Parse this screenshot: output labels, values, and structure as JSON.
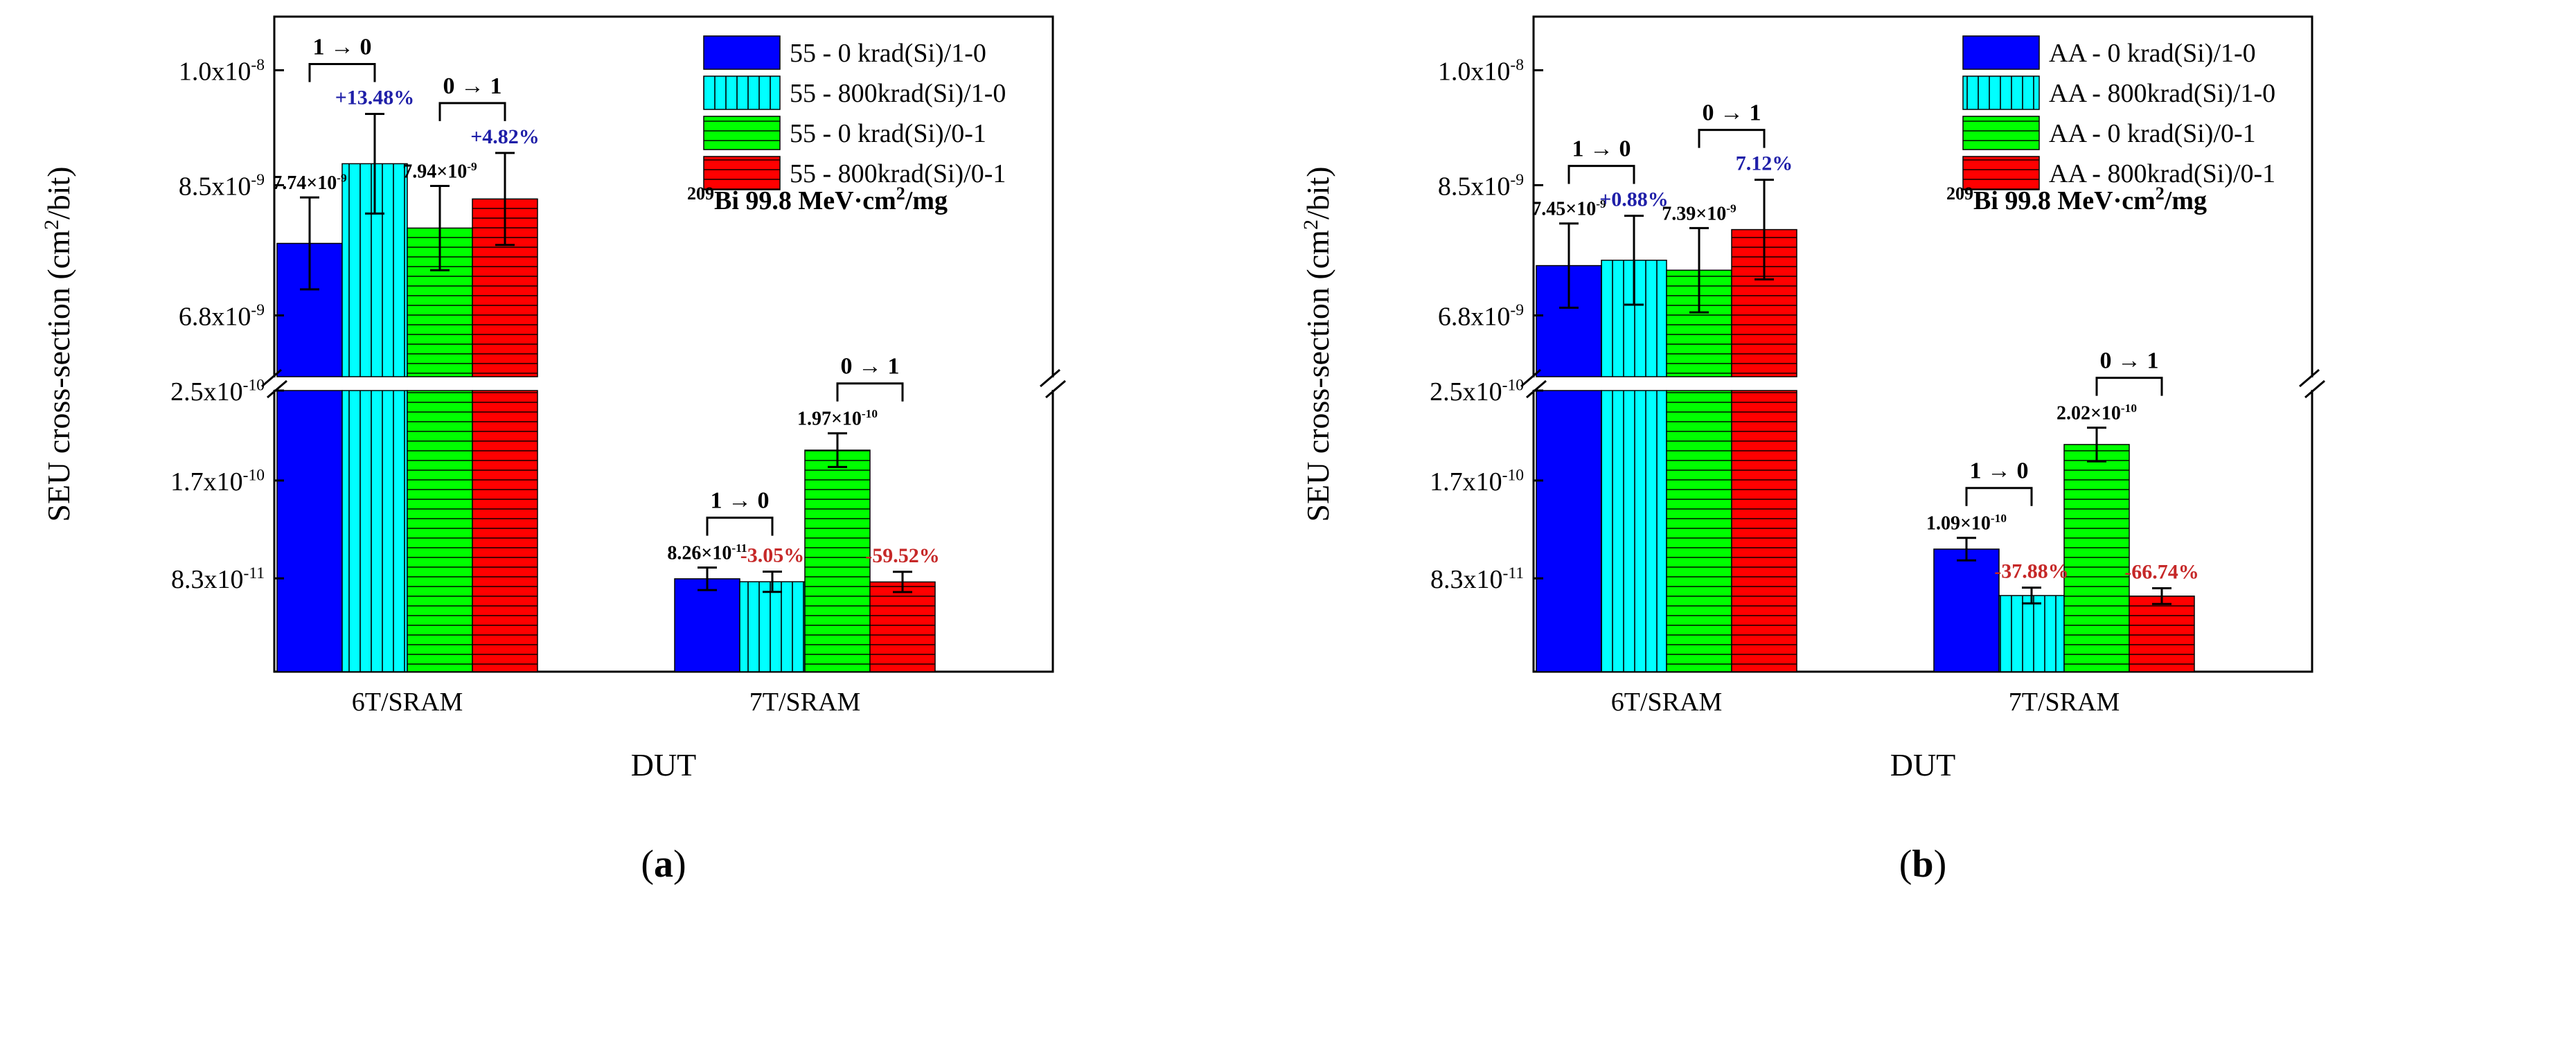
{
  "figure": {
    "subcaptions": [
      "(a)",
      "(b)"
    ]
  },
  "chart_data": [
    {
      "type": "bar",
      "panel_label": "(a)",
      "xlabel": "DUT",
      "ylabel": "SEU cross-section (cm²/bit)",
      "ylabel_parts": {
        "prefix": "SEU cross-section (cm",
        "sup": "2",
        "suffix": "/bit)"
      },
      "axis_break": true,
      "upper_axis": {
        "ylim": [
          6e-09,
          1.07e-08
        ],
        "ticks": [
          {
            "value": 6.8e-09,
            "base": "6.8x10",
            "exp": "-9"
          },
          {
            "value": 8.5e-09,
            "base": "8.5x10",
            "exp": "-9"
          },
          {
            "value": 1e-08,
            "base": "1.0x10",
            "exp": "-8"
          }
        ]
      },
      "lower_axis": {
        "ylim": [
          0,
          2.5e-10
        ],
        "ticks": [
          {
            "value": 8.3e-11,
            "base": "8.3x10",
            "exp": "-11"
          },
          {
            "value": 1.7e-10,
            "base": "1.7x10",
            "exp": "-10"
          },
          {
            "value": 2.5e-10,
            "base": "2.5x10",
            "exp": "-10"
          }
        ]
      },
      "categories": [
        "6T/SRAM",
        "7T/SRAM"
      ],
      "series": [
        {
          "name": "55 -  0  krad(Si)/1-0",
          "color": "#0000ff",
          "pattern": "solid",
          "values": [
            7.74e-09,
            8.26e-11
          ],
          "errors": [
            6e-10,
            1e-11
          ]
        },
        {
          "name": "55 - 800krad(Si)/1-0",
          "color": "#00ffff",
          "pattern": "vertical",
          "values": [
            8.78e-09,
            8e-11
          ],
          "errors": [
            6.5e-10,
            9e-12
          ]
        },
        {
          "name": "55 -  0  krad(Si)/0-1",
          "color": "#00ff00",
          "pattern": "horizontal",
          "values": [
            7.94e-09,
            1.97e-10
          ],
          "errors": [
            5.5e-10,
            1.5e-11
          ]
        },
        {
          "name": "55 - 800krad(Si)/0-1",
          "color": "#ff0000",
          "pattern": "horizontal",
          "values": [
            8.32e-09,
            7.98e-11
          ],
          "errors": [
            6e-10,
            9e-12
          ]
        }
      ],
      "annotations": {
        "value_labels": [
          {
            "category": 0,
            "series": 0,
            "base": "7.74×10",
            "exp": "-9"
          },
          {
            "category": 0,
            "series": 2,
            "base": "7.94×10",
            "exp": "-9"
          },
          {
            "category": 1,
            "series": 0,
            "base": "8.26×10",
            "exp": "-11"
          },
          {
            "category": 1,
            "series": 2,
            "base": "1.97×10",
            "exp": "-10"
          }
        ],
        "percent_labels": [
          {
            "category": 0,
            "series": 1,
            "text": "+13.48%",
            "color": "#1f1fa8"
          },
          {
            "category": 0,
            "series": 3,
            "text": "+4.82%",
            "color": "#1f1fa8"
          },
          {
            "category": 1,
            "series": 1,
            "text": "-3.05%",
            "color": "#c62828"
          },
          {
            "category": 1,
            "series": 3,
            "text": "-59.52%",
            "color": "#c62828"
          }
        ],
        "brackets": [
          {
            "category": 0,
            "pair": [
              0,
              1
            ],
            "text": "1 → 0"
          },
          {
            "category": 0,
            "pair": [
              2,
              3
            ],
            "text": "0 → 1"
          },
          {
            "category": 1,
            "pair": [
              0,
              1
            ],
            "text": "1 → 0"
          },
          {
            "category": 1,
            "pair": [
              2,
              3
            ],
            "text": "0 → 1"
          }
        ]
      },
      "ion_note": {
        "sup": "209",
        "text": "Bi  99.8 MeV·cm",
        "sup2": "2",
        "tail": "/mg"
      },
      "legend_position": "top-right"
    },
    {
      "type": "bar",
      "panel_label": "(b)",
      "xlabel": "DUT",
      "ylabel": "SEU cross-section (cm²/bit)",
      "ylabel_parts": {
        "prefix": "SEU cross-section (cm",
        "sup": "2",
        "suffix": "/bit)"
      },
      "axis_break": true,
      "upper_axis": {
        "ylim": [
          6e-09,
          1.07e-08
        ],
        "ticks": [
          {
            "value": 6.8e-09,
            "base": "6.8x10",
            "exp": "-9"
          },
          {
            "value": 8.5e-09,
            "base": "8.5x10",
            "exp": "-9"
          },
          {
            "value": 1e-08,
            "base": "1.0x10",
            "exp": "-8"
          }
        ]
      },
      "lower_axis": {
        "ylim": [
          0,
          2.5e-10
        ],
        "ticks": [
          {
            "value": 8.3e-11,
            "base": "8.3x10",
            "exp": "-11"
          },
          {
            "value": 1.7e-10,
            "base": "1.7x10",
            "exp": "-10"
          },
          {
            "value": 2.5e-10,
            "base": "2.5x10",
            "exp": "-10"
          }
        ]
      },
      "categories": [
        "6T/SRAM",
        "7T/SRAM"
      ],
      "series": [
        {
          "name": "AA -  0  krad(Si)/1-0",
          "color": "#0000ff",
          "pattern": "solid",
          "values": [
            7.45e-09,
            1.09e-10
          ],
          "errors": [
            5.5e-10,
            1e-11
          ]
        },
        {
          "name": "AA - 800krad(Si)/1-0",
          "color": "#00ffff",
          "pattern": "vertical",
          "values": [
            7.52e-09,
            6.77e-11
          ],
          "errors": [
            5.8e-10,
            7e-12
          ]
        },
        {
          "name": "AA -  0  krad(Si)/0-1",
          "color": "#00ff00",
          "pattern": "horizontal",
          "values": [
            7.39e-09,
            2.02e-10
          ],
          "errors": [
            5.5e-10,
            1.5e-11
          ]
        },
        {
          "name": "AA - 800krad(Si)/0-1",
          "color": "#ff0000",
          "pattern": "horizontal",
          "values": [
            7.92e-09,
            6.72e-11
          ],
          "errors": [
            6.5e-10,
            7e-12
          ]
        }
      ],
      "annotations": {
        "value_labels": [
          {
            "category": 0,
            "series": 0,
            "base": "7.45×10",
            "exp": "-9"
          },
          {
            "category": 0,
            "series": 2,
            "base": "7.39×10",
            "exp": "-9"
          },
          {
            "category": 1,
            "series": 0,
            "base": "1.09×10",
            "exp": "-10"
          },
          {
            "category": 1,
            "series": 2,
            "base": "2.02×10",
            "exp": "-10"
          }
        ],
        "percent_labels": [
          {
            "category": 0,
            "series": 1,
            "text": "+0.88%",
            "color": "#1f1fa8"
          },
          {
            "category": 0,
            "series": 3,
            "text": "7.12%",
            "color": "#1f1fa8"
          },
          {
            "category": 1,
            "series": 1,
            "text": "-37.88%",
            "color": "#c62828"
          },
          {
            "category": 1,
            "series": 3,
            "text": "-66.74%",
            "color": "#c62828"
          }
        ],
        "brackets": [
          {
            "category": 0,
            "pair": [
              0,
              1
            ],
            "text": "1 → 0"
          },
          {
            "category": 0,
            "pair": [
              2,
              3
            ],
            "text": "0 → 1"
          },
          {
            "category": 1,
            "pair": [
              0,
              1
            ],
            "text": "1 → 0"
          },
          {
            "category": 1,
            "pair": [
              2,
              3
            ],
            "text": "0 → 1"
          }
        ]
      },
      "ion_note": {
        "sup": "209",
        "text": "Bi  99.8 MeV·cm",
        "sup2": "2",
        "tail": "/mg"
      },
      "legend_position": "top-right"
    }
  ]
}
